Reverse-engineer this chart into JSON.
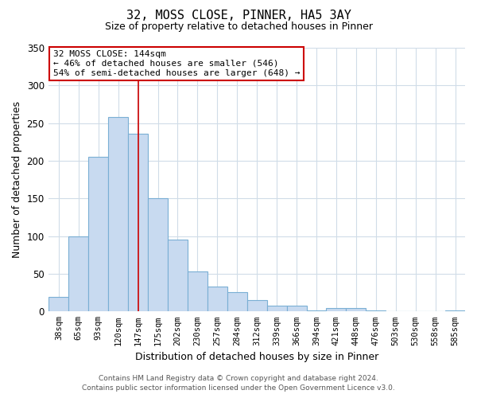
{
  "title": "32, MOSS CLOSE, PINNER, HA5 3AY",
  "subtitle": "Size of property relative to detached houses in Pinner",
  "xlabel": "Distribution of detached houses by size in Pinner",
  "ylabel": "Number of detached properties",
  "bar_labels": [
    "38sqm",
    "65sqm",
    "93sqm",
    "120sqm",
    "147sqm",
    "175sqm",
    "202sqm",
    "230sqm",
    "257sqm",
    "284sqm",
    "312sqm",
    "339sqm",
    "366sqm",
    "394sqm",
    "421sqm",
    "448sqm",
    "476sqm",
    "503sqm",
    "530sqm",
    "558sqm",
    "585sqm"
  ],
  "bar_values": [
    19,
    100,
    205,
    258,
    236,
    150,
    95,
    53,
    33,
    26,
    15,
    8,
    8,
    1,
    5,
    5,
    1,
    0,
    0,
    0,
    1
  ],
  "bar_color": "#c8daf0",
  "bar_edge_color": "#7aafd4",
  "ylim": [
    0,
    350
  ],
  "yticks": [
    0,
    50,
    100,
    150,
    200,
    250,
    300,
    350
  ],
  "vline_x": 4,
  "vline_color": "#cc0000",
  "annotation_title": "32 MOSS CLOSE: 144sqm",
  "annotation_line1": "← 46% of detached houses are smaller (546)",
  "annotation_line2": "54% of semi-detached houses are larger (648) →",
  "annotation_box_edge": "#cc0000",
  "footer_line1": "Contains HM Land Registry data © Crown copyright and database right 2024.",
  "footer_line2": "Contains public sector information licensed under the Open Government Licence v3.0.",
  "background_color": "#ffffff",
  "grid_color": "#d0dce8"
}
